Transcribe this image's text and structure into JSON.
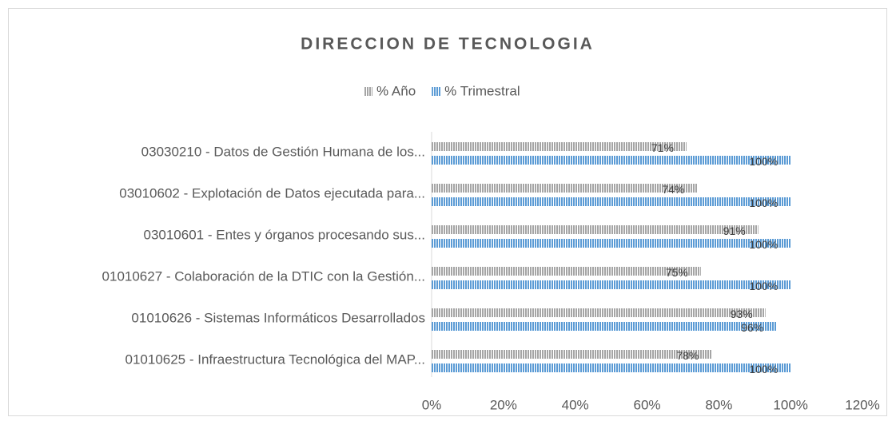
{
  "chart_data": {
    "type": "bar",
    "orientation": "horizontal",
    "title": "DIRECCION DE TECNOLOGIA",
    "categories": [
      "03030210 - Datos de Gestión Humana de los...",
      "03010602 - Explotación de Datos ejecutada para...",
      "03010601 - Entes y órganos procesando sus...",
      "01010627 - Colaboración de la DTIC con la Gestión...",
      "01010626 - Sistemas Informáticos Desarrollados",
      "01010625 - Infraestructura Tecnológica del MAP..."
    ],
    "series": [
      {
        "name": "% Año",
        "color": "#a5a5a5",
        "values": [
          71,
          74,
          91,
          75,
          93,
          78
        ],
        "value_labels": [
          "71%",
          "74%",
          "91%",
          "75%",
          "93%",
          "78%"
        ]
      },
      {
        "name": "% Trimestral",
        "color": "#5b9bd5",
        "values": [
          100,
          100,
          100,
          100,
          96,
          100
        ],
        "value_labels": [
          "100%",
          "100%",
          "100%",
          "100%",
          "96%",
          "100%"
        ]
      }
    ],
    "xlim": [
      0,
      120
    ],
    "xticks": [
      {
        "value": 0,
        "label": "0%"
      },
      {
        "value": 20,
        "label": "20%"
      },
      {
        "value": 40,
        "label": "40%"
      },
      {
        "value": 60,
        "label": "60%"
      },
      {
        "value": 80,
        "label": "80%"
      },
      {
        "value": 100,
        "label": "100%"
      },
      {
        "value": 120,
        "label": "120%"
      }
    ],
    "legend": "top",
    "grid": false
  }
}
